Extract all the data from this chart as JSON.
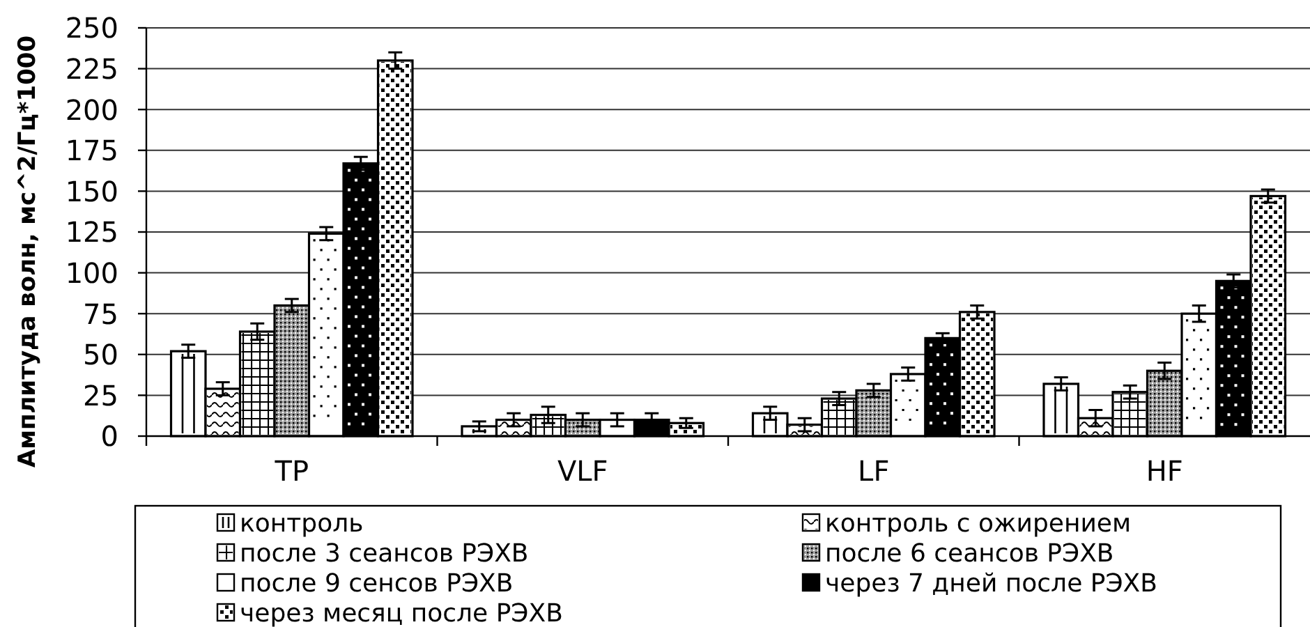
{
  "chart_data": {
    "type": "bar",
    "ylabel": "Амплитуда волн, мс^2/Гц*1000",
    "categories": [
      "TP",
      "VLF",
      "LF",
      "HF"
    ],
    "series": [
      {
        "name": "контроль",
        "color": "#ffffff",
        "values": [
          52,
          6,
          14,
          32
        ],
        "errors": [
          4,
          3,
          4,
          4
        ]
      },
      {
        "name": "контроль с ожирением",
        "color": "#ffffff",
        "values": [
          29,
          10,
          7,
          11
        ],
        "errors": [
          4,
          4,
          4,
          5
        ]
      },
      {
        "name": "после 3 сеансов РЭХВ",
        "color": "#ffffff",
        "values": [
          64,
          13,
          23,
          27
        ],
        "errors": [
          5,
          5,
          4,
          4
        ]
      },
      {
        "name": "после 6 сеансов РЭХВ",
        "color": "#a0a0a0",
        "values": [
          80,
          10,
          28,
          40
        ],
        "errors": [
          4,
          4,
          4,
          5
        ]
      },
      {
        "name": "после 9 сенсов РЭХВ",
        "color": "#ffffff",
        "values": [
          124,
          10,
          38,
          75
        ],
        "errors": [
          4,
          4,
          4,
          5
        ]
      },
      {
        "name": "через 7 дней после РЭХВ",
        "color": "#000000",
        "values": [
          167,
          10,
          60,
          95
        ],
        "errors": [
          4,
          4,
          3,
          4
        ]
      },
      {
        "name": "через месяц после РЭХВ",
        "color": "#ffffff",
        "values": [
          230,
          8,
          76,
          147
        ],
        "errors": [
          5,
          3,
          4,
          4
        ]
      }
    ],
    "ylim": [
      0,
      250
    ],
    "yticks": [
      0,
      25,
      50,
      75,
      100,
      125,
      150,
      175,
      200,
      225,
      250
    ],
    "grid": "y",
    "legend": "bottom"
  }
}
